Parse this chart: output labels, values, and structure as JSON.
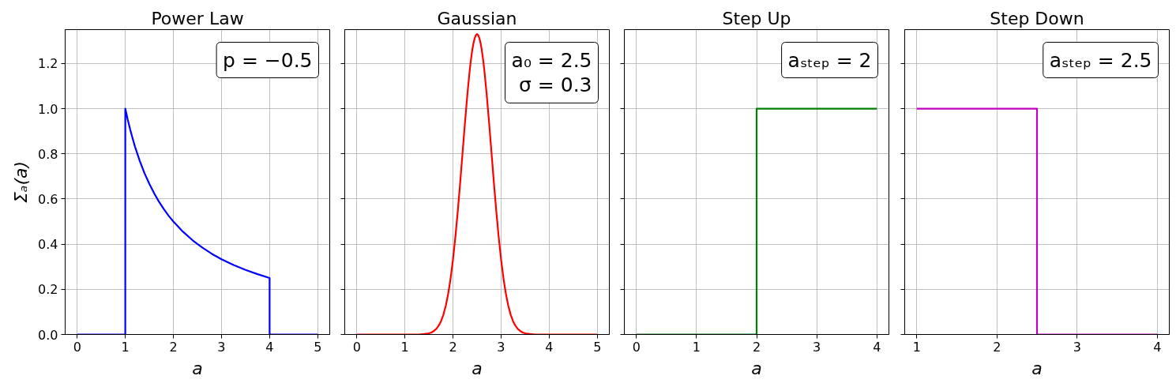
{
  "chart_data": [
    {
      "type": "line",
      "title": "Power Law",
      "xlabel": "a",
      "ylabel": "Σₐ(a)",
      "annotations": [
        "p = −0.5"
      ],
      "grid": true,
      "x": [
        0,
        1,
        1,
        1.05,
        1.1,
        1.15,
        1.2,
        1.3,
        1.4,
        1.5,
        1.6,
        1.7,
        1.8,
        1.9,
        2,
        2.2,
        2.4,
        2.6,
        2.8,
        3,
        3.25,
        3.5,
        3.75,
        4,
        4,
        5
      ],
      "series": [
        {
          "color": "#0000ff",
          "values": [
            0,
            0,
            1,
            0.952,
            0.909,
            0.87,
            0.833,
            0.769,
            0.714,
            0.667,
            0.625,
            0.588,
            0.556,
            0.526,
            0.5,
            0.455,
            0.417,
            0.385,
            0.357,
            0.333,
            0.308,
            0.286,
            0.267,
            0.25,
            0,
            0
          ]
        }
      ],
      "xlim": [
        -0.25,
        5.25
      ],
      "xticks": [
        0,
        1,
        2,
        3,
        4,
        5
      ],
      "ylim": [
        0,
        1.35
      ],
      "yticks": [
        {
          "value": 0,
          "label": "0.0"
        },
        {
          "value": 0.2,
          "label": "0.2"
        },
        {
          "value": 0.4,
          "label": "0.4"
        },
        {
          "value": 0.6,
          "label": "0.6"
        },
        {
          "value": 0.8,
          "label": "0.8"
        },
        {
          "value": 1.0,
          "label": "1.0"
        },
        {
          "value": 1.2,
          "label": "1.2"
        }
      ]
    },
    {
      "type": "line",
      "title": "Gaussian",
      "xlabel": "a",
      "annotations": [
        "a₀ = 2.5",
        "σ = 0.3"
      ],
      "grid": true,
      "tick_labels": "x",
      "x": [
        0,
        1,
        1.3,
        1.4,
        1.5,
        1.55,
        1.6,
        1.65,
        1.7,
        1.75,
        1.8,
        1.85,
        1.9,
        1.95,
        2,
        2.05,
        2.1,
        2.15,
        2.2,
        2.25,
        2.3,
        2.35,
        2.375,
        2.4,
        2.425,
        2.45,
        2.475,
        2.5,
        2.525,
        2.55,
        2.575,
        2.6,
        2.625,
        2.65,
        2.7,
        2.75,
        2.8,
        2.85,
        2.9,
        2.95,
        3,
        3.05,
        3.1,
        3.15,
        3.2,
        3.25,
        3.3,
        3.35,
        3.4,
        3.45,
        3.5,
        3.6,
        3.7,
        4,
        5
      ],
      "series": [
        {
          "color": "#ff0000",
          "values": [
            0,
            0,
            0,
            0.002,
            0.005,
            0.009,
            0.015,
            0.024,
            0.038,
            0.058,
            0.087,
            0.127,
            0.18,
            0.248,
            0.332,
            0.432,
            0.547,
            0.673,
            0.807,
            0.94,
            1.065,
            1.174,
            1.219,
            1.258,
            1.289,
            1.311,
            1.325,
            1.33,
            1.325,
            1.311,
            1.289,
            1.258,
            1.219,
            1.174,
            1.065,
            0.94,
            0.807,
            0.673,
            0.547,
            0.432,
            0.332,
            0.248,
            0.18,
            0.127,
            0.087,
            0.058,
            0.038,
            0.024,
            0.015,
            0.009,
            0.005,
            0.002,
            0,
            0,
            0
          ]
        }
      ],
      "xlim": [
        -0.25,
        5.25
      ],
      "xticks": [
        0,
        1,
        2,
        3,
        4,
        5
      ],
      "ylim": [
        0,
        1.35
      ],
      "yticks": [
        0,
        0.2,
        0.4,
        0.6,
        0.8,
        1.0,
        1.2
      ]
    },
    {
      "type": "line",
      "title": "Step Up",
      "xlabel": "a",
      "annotations": [
        "aₛₜₑₚ = 2"
      ],
      "grid": true,
      "tick_labels": "x",
      "x": [
        0,
        2,
        2,
        4
      ],
      "series": [
        {
          "color": "#008000",
          "values": [
            0,
            0,
            1,
            1
          ]
        }
      ],
      "xlim": [
        -0.2,
        4.2
      ],
      "xticks": [
        0,
        1,
        2,
        3,
        4
      ],
      "ylim": [
        0,
        1.35
      ],
      "yticks": [
        0,
        0.2,
        0.4,
        0.6,
        0.8,
        1.0,
        1.2
      ]
    },
    {
      "type": "line",
      "title": "Step Down",
      "xlabel": "a",
      "annotations": [
        "aₛₜₑₚ = 2.5"
      ],
      "grid": true,
      "tick_labels": "x",
      "x": [
        1,
        2.5,
        2.5,
        4
      ],
      "series": [
        {
          "color": "#bf00bf",
          "values": [
            1,
            1,
            0,
            0
          ]
        }
      ],
      "xlim": [
        0.85,
        4.15
      ],
      "xticks": [
        1,
        2,
        3,
        4
      ],
      "ylim": [
        0,
        1.35
      ],
      "yticks": [
        0,
        0.2,
        0.4,
        0.6,
        0.8,
        1.0,
        1.2
      ]
    }
  ]
}
